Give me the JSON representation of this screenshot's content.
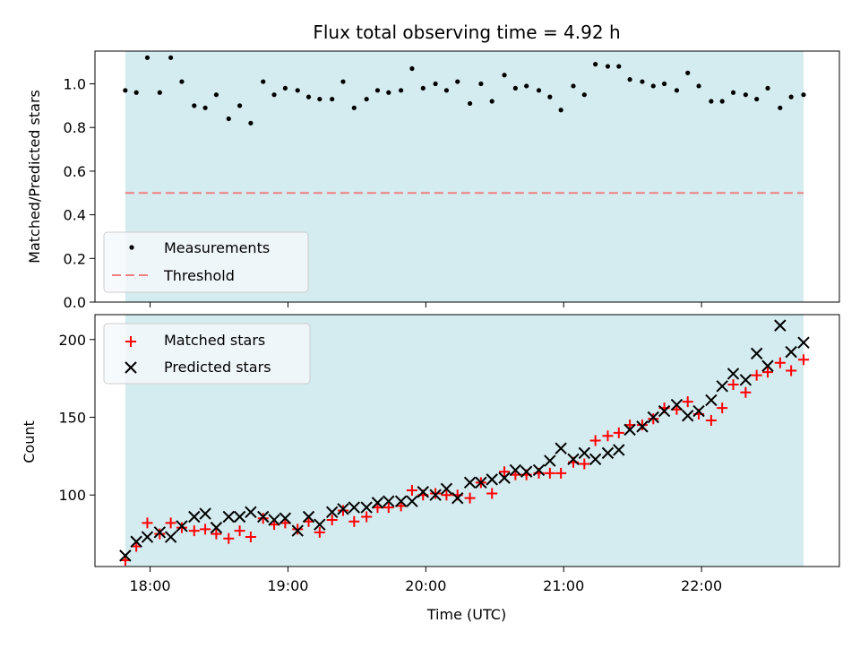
{
  "chart_data": [
    {
      "type": "scatter",
      "title": "Flux total observing time = 4.92 h",
      "ylabel": "Matched/Predicted stars",
      "xlabel": "",
      "x_unit": "hours UTC",
      "xlim": [
        17.6,
        23.0
      ],
      "ylim": [
        0.0,
        1.15
      ],
      "yticks": [
        "0.0",
        "0.2",
        "0.4",
        "0.6",
        "0.8",
        "1.0"
      ],
      "shaded_span": [
        17.82,
        22.74
      ],
      "shade_color": "#d4ebf0",
      "legend_position": "lower left",
      "series": [
        {
          "name": "Measurements",
          "marker": "dot",
          "color": "#000000",
          "x": [
            17.82,
            17.9,
            17.98,
            18.07,
            18.15,
            18.23,
            18.32,
            18.4,
            18.48,
            18.57,
            18.65,
            18.73,
            18.82,
            18.9,
            18.98,
            19.07,
            19.15,
            19.23,
            19.32,
            19.4,
            19.48,
            19.57,
            19.65,
            19.73,
            19.82,
            19.9,
            19.98,
            20.07,
            20.15,
            20.23,
            20.32,
            20.4,
            20.48,
            20.57,
            20.65,
            20.73,
            20.82,
            20.9,
            20.98,
            21.07,
            21.15,
            21.23,
            21.32,
            21.4,
            21.48,
            21.57,
            21.65,
            21.73,
            21.82,
            21.9,
            21.98,
            22.07,
            22.15,
            22.23,
            22.32,
            22.4,
            22.48,
            22.57,
            22.65,
            22.74
          ],
          "y": [
            0.97,
            0.96,
            1.12,
            0.96,
            1.12,
            1.01,
            0.9,
            0.89,
            0.95,
            0.84,
            0.9,
            0.82,
            1.01,
            0.95,
            0.98,
            0.97,
            0.94,
            0.93,
            0.93,
            1.01,
            0.89,
            0.93,
            0.97,
            0.96,
            0.97,
            1.07,
            0.98,
            1.0,
            0.97,
            1.01,
            0.91,
            1.0,
            0.92,
            1.04,
            0.98,
            0.99,
            0.97,
            0.94,
            0.88,
            0.99,
            0.95,
            1.09,
            1.08,
            1.08,
            1.02,
            1.01,
            0.99,
            1.0,
            0.97,
            1.05,
            0.99,
            0.92,
            0.92,
            0.96,
            0.95,
            0.93,
            0.98,
            0.89,
            0.94,
            0.95
          ]
        },
        {
          "name": "Threshold",
          "marker": "dashed-line",
          "color": "#f08080",
          "y_constant": 0.5
        }
      ]
    },
    {
      "type": "scatter",
      "title": "",
      "xlabel": "Time (UTC)",
      "ylabel": "Count",
      "xlim": [
        17.6,
        23.0
      ],
      "ylim": [
        54,
        216
      ],
      "xticks": [
        "18:00",
        "19:00",
        "20:00",
        "21:00",
        "22:00"
      ],
      "yticks": [
        "100",
        "150",
        "200"
      ],
      "shaded_span": [
        17.82,
        22.74
      ],
      "legend_position": "upper left",
      "series": [
        {
          "name": "Matched stars",
          "marker": "plus",
          "color": "#ff0000",
          "x": [
            17.82,
            17.9,
            17.98,
            18.07,
            18.15,
            18.23,
            18.32,
            18.4,
            18.48,
            18.57,
            18.65,
            18.73,
            18.82,
            18.9,
            18.98,
            19.07,
            19.15,
            19.23,
            19.32,
            19.4,
            19.48,
            19.57,
            19.65,
            19.73,
            19.82,
            19.9,
            19.98,
            20.07,
            20.15,
            20.23,
            20.32,
            20.4,
            20.48,
            20.57,
            20.65,
            20.73,
            20.82,
            20.9,
            20.98,
            21.07,
            21.15,
            21.23,
            21.32,
            21.4,
            21.48,
            21.57,
            21.65,
            21.73,
            21.82,
            21.9,
            21.98,
            22.07,
            22.15,
            22.23,
            22.32,
            22.4,
            22.48,
            22.57,
            22.65,
            22.74
          ],
          "y": [
            58,
            67,
            82,
            75,
            82,
            79,
            77,
            78,
            75,
            72,
            77,
            73,
            85,
            81,
            82,
            78,
            83,
            76,
            84,
            90,
            83,
            86,
            92,
            92,
            93,
            103,
            100,
            101,
            100,
            100,
            98,
            108,
            101,
            115,
            113,
            113,
            114,
            114,
            114,
            121,
            120,
            135,
            138,
            140,
            145,
            145,
            149,
            156,
            155,
            160,
            152,
            148,
            156,
            171,
            166,
            177,
            179,
            185,
            180,
            187
          ]
        },
        {
          "name": "Predicted stars",
          "marker": "x",
          "color": "#000000",
          "x": [
            17.82,
            17.9,
            17.98,
            18.07,
            18.15,
            18.23,
            18.32,
            18.4,
            18.48,
            18.57,
            18.65,
            18.73,
            18.82,
            18.9,
            18.98,
            19.07,
            19.15,
            19.23,
            19.32,
            19.4,
            19.48,
            19.57,
            19.65,
            19.73,
            19.82,
            19.9,
            19.98,
            20.07,
            20.15,
            20.23,
            20.32,
            20.4,
            20.48,
            20.57,
            20.65,
            20.73,
            20.82,
            20.9,
            20.98,
            21.07,
            21.15,
            21.23,
            21.32,
            21.4,
            21.48,
            21.57,
            21.65,
            21.73,
            21.82,
            21.9,
            21.98,
            22.07,
            22.15,
            22.23,
            22.32,
            22.4,
            22.48,
            22.57,
            22.65,
            22.74
          ],
          "y": [
            61,
            70,
            73,
            76,
            73,
            80,
            86,
            88,
            79,
            86,
            86,
            89,
            86,
            84,
            85,
            77,
            86,
            81,
            89,
            91,
            92,
            92,
            95,
            96,
            96,
            96,
            102,
            100,
            104,
            98,
            108,
            108,
            110,
            111,
            116,
            115,
            116,
            122,
            130,
            123,
            127,
            123,
            127,
            129,
            142,
            144,
            150,
            154,
            158,
            151,
            154,
            161,
            170,
            178,
            174,
            191,
            183,
            209,
            192,
            198
          ]
        }
      ]
    }
  ]
}
